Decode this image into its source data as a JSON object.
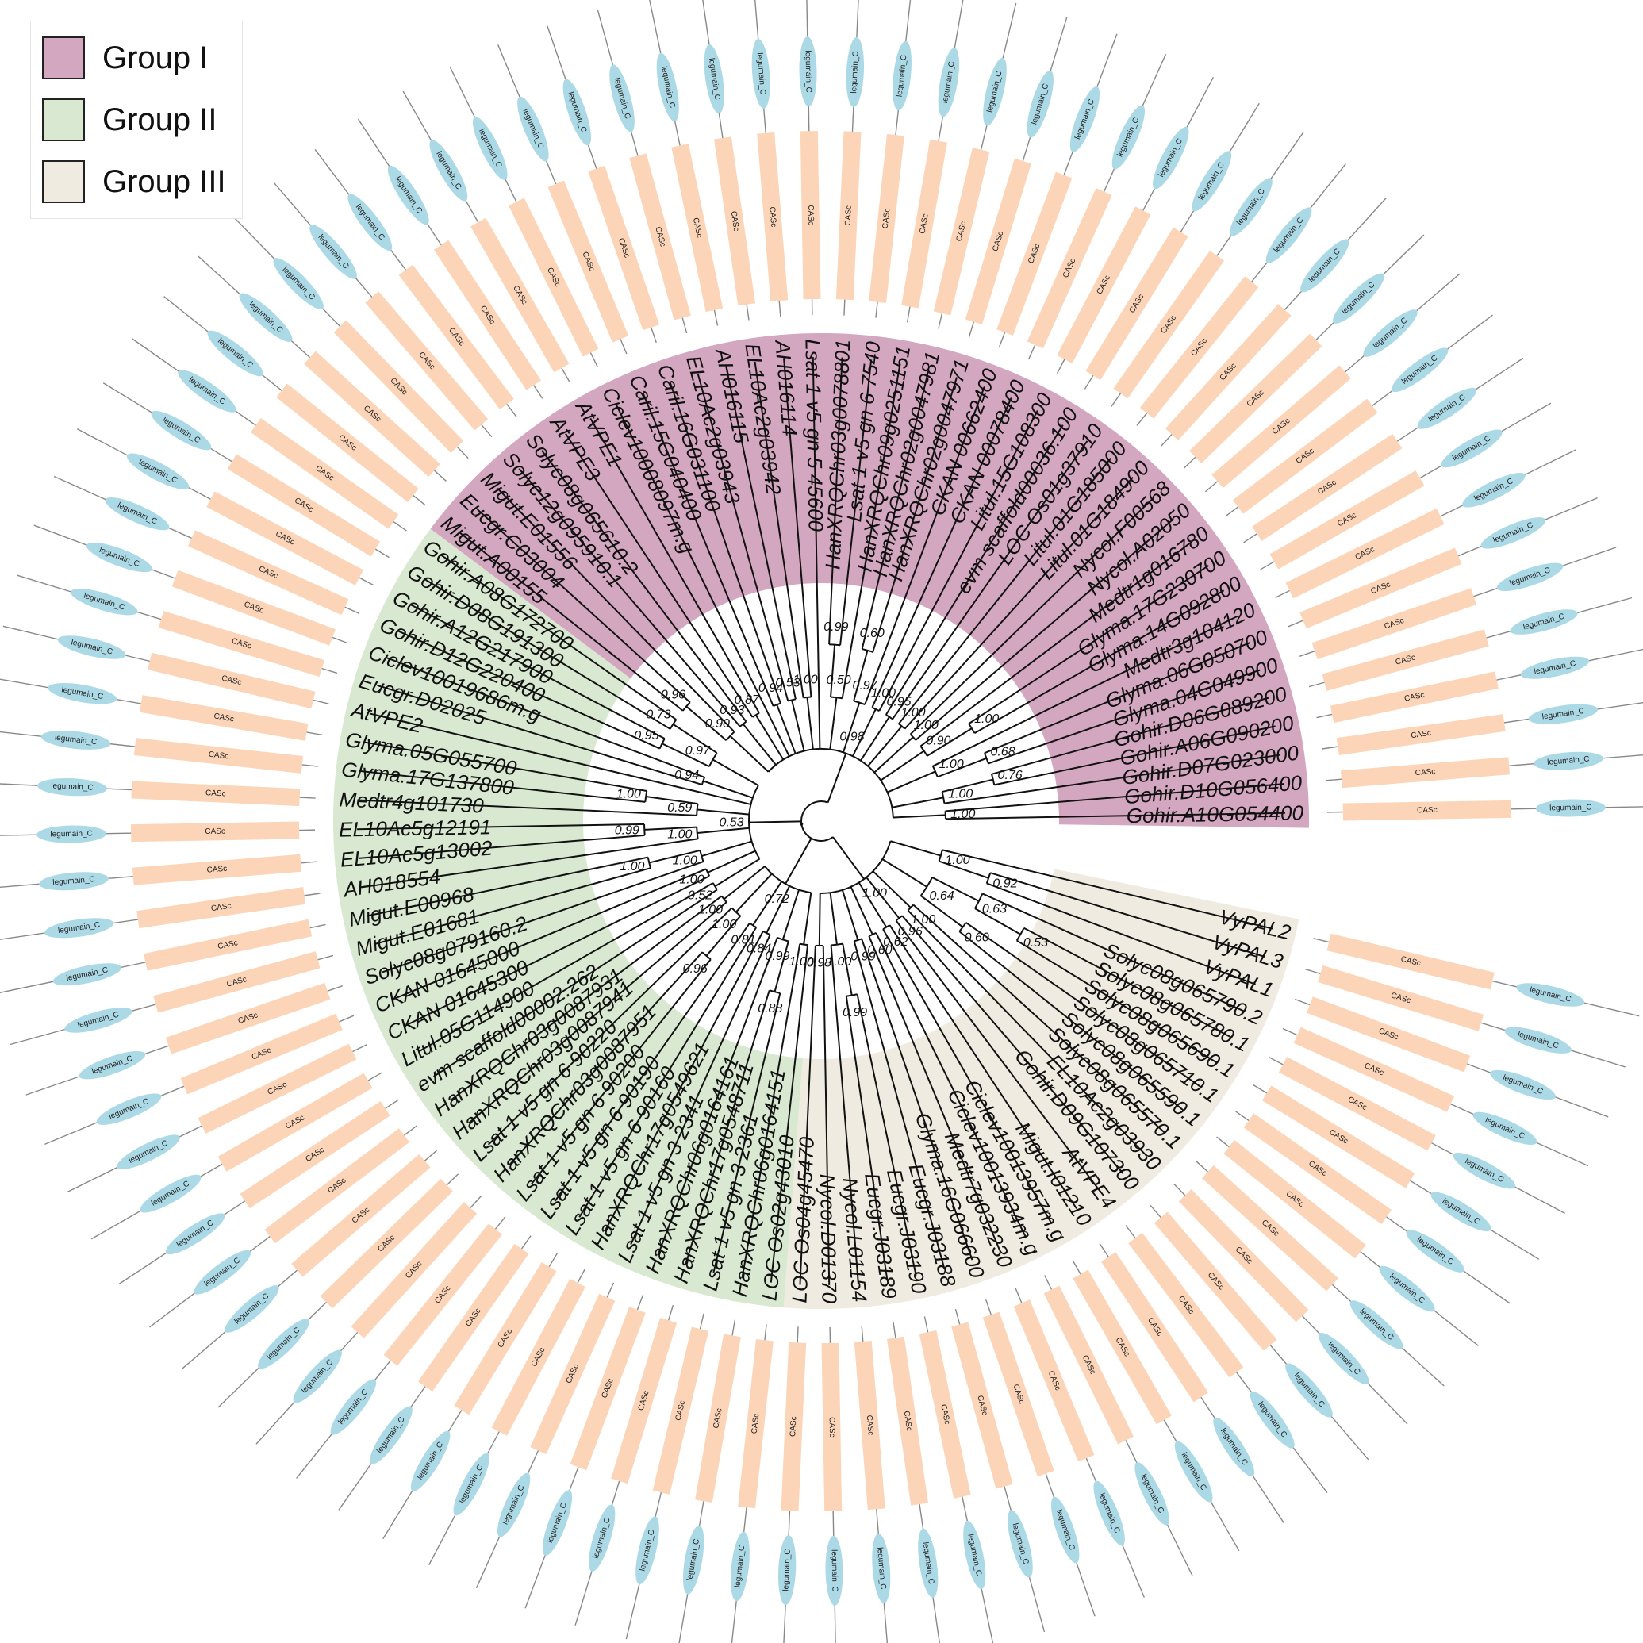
{
  "legend": {
    "items": [
      {
        "label": "Group I",
        "color": "#d4a7c0"
      },
      {
        "label": "Group II",
        "color": "#d9e8d1"
      },
      {
        "label": "Group III",
        "color": "#efebe0"
      }
    ]
  },
  "domains": {
    "inner_label": "CASc",
    "inner_color": "#fcd5b8",
    "outer_label": "legumain_C",
    "outer_color": "#acd9e6",
    "line_color": "#888888"
  },
  "leaves": [
    {
      "name": "Gohir.A10G054400",
      "group": 1
    },
    {
      "name": "Gohir.D10G056400",
      "group": 1
    },
    {
      "name": "Gohir.D07G023000",
      "group": 1
    },
    {
      "name": "Gohir.A06G090200",
      "group": 1
    },
    {
      "name": "Gohir.D06G089200",
      "group": 1
    },
    {
      "name": "Glyma.04G049900",
      "group": 1
    },
    {
      "name": "Glyma.06G050700",
      "group": 1
    },
    {
      "name": "Medtr3g104120",
      "group": 1
    },
    {
      "name": "Glyma.14G092800",
      "group": 1
    },
    {
      "name": "Glyma.17G230700",
      "group": 1
    },
    {
      "name": "Medtr1g016780",
      "group": 1
    },
    {
      "name": "Nycol.A02050",
      "group": 1
    },
    {
      "name": "Nycol.F00568",
      "group": 1
    },
    {
      "name": "Litul.01G184900",
      "group": 1
    },
    {
      "name": "Litul.01G185000",
      "group": 1
    },
    {
      "name": "LOC Os01g37910",
      "group": 1
    },
    {
      "name": "evm scaffold00036.100",
      "group": 1
    },
    {
      "name": "Litul.15G108300",
      "group": 1
    },
    {
      "name": "CKAN 00078400",
      "group": 1
    },
    {
      "name": "CKAN 00662400",
      "group": 1
    },
    {
      "name": "HanXRQChr02g0047971",
      "group": 1
    },
    {
      "name": "HanXRQChr02g0047981",
      "group": 1
    },
    {
      "name": "HanXRQChr09g0251151",
      "group": 1
    },
    {
      "name": "Lsat 1 v5 gn 6 7540",
      "group": 1
    },
    {
      "name": "HanXRQChr03g0078801",
      "group": 1
    },
    {
      "name": "Lsat 1 v5 gn 5 45600",
      "group": 1
    },
    {
      "name": "AH016114",
      "group": 1
    },
    {
      "name": "EL10Ac2g03942",
      "group": 1
    },
    {
      "name": "AH016115",
      "group": 1
    },
    {
      "name": "EL10Ac2g03943",
      "group": 1
    },
    {
      "name": "Caril.16G031100",
      "group": 1
    },
    {
      "name": "Caril.15G040400",
      "group": 1
    },
    {
      "name": "Ciclev10008097m.g",
      "group": 1
    },
    {
      "name": "AtVPE1",
      "group": 1
    },
    {
      "name": "AtVPE3",
      "group": 1
    },
    {
      "name": "Solyc08g065610.2",
      "group": 1
    },
    {
      "name": "Solyc12g095910.1",
      "group": 1
    },
    {
      "name": "Migut.E01556",
      "group": 1
    },
    {
      "name": "Eucgr.C03004",
      "group": 1
    },
    {
      "name": "Migut.A00155",
      "group": 1
    },
    {
      "name": "Gohir.A08G172700",
      "group": 2
    },
    {
      "name": "Gohir.D08G191300",
      "group": 2
    },
    {
      "name": "Gohir.A12G217900",
      "group": 2
    },
    {
      "name": "Gohir.D12G220400",
      "group": 2
    },
    {
      "name": "Ciclev10019686m.g",
      "group": 2
    },
    {
      "name": "Eucgr.D02025",
      "group": 2
    },
    {
      "name": "AtVPE2",
      "group": 2
    },
    {
      "name": "Glyma.05G055700",
      "group": 2
    },
    {
      "name": "Glyma.17G137800",
      "group": 2
    },
    {
      "name": "Medtr4g101730",
      "group": 2
    },
    {
      "name": "EL10Ac5g12191",
      "group": 2
    },
    {
      "name": "EL10Ac5g13002",
      "group": 2
    },
    {
      "name": "AH018554",
      "group": 2
    },
    {
      "name": "Migut.E00968",
      "group": 2
    },
    {
      "name": "Migut.E01681",
      "group": 2
    },
    {
      "name": "Solyc08g079160.2",
      "group": 2
    },
    {
      "name": "CKAN 01645000",
      "group": 2
    },
    {
      "name": "CKAN 01645300",
      "group": 2
    },
    {
      "name": "Litul.05G114900",
      "group": 2
    },
    {
      "name": "evm scaffold00002.262",
      "group": 2
    },
    {
      "name": "HanXRQChr03g0087931",
      "group": 2
    },
    {
      "name": "HanXRQChr03g0087941",
      "group": 2
    },
    {
      "name": "Lsat 1 v5 gn 6 90220",
      "group": 2
    },
    {
      "name": "HanXRQChr03g0087951",
      "group": 2
    },
    {
      "name": "Lsat 1 v5 gn 6 90200",
      "group": 2
    },
    {
      "name": "Lsat 1 v5 gn 6 90190",
      "group": 2
    },
    {
      "name": "Lsat 1 v5 gn 6 90160",
      "group": 2
    },
    {
      "name": "HanXRQChr17g0549621",
      "group": 2
    },
    {
      "name": "Lsat 1 v5 gn 3 2341",
      "group": 2
    },
    {
      "name": "HanXRQChr06g0164161",
      "group": 2
    },
    {
      "name": "HanXRQChr17g0548711",
      "group": 2
    },
    {
      "name": "Lsat 1 v5 gn 3 2361",
      "group": 2
    },
    {
      "name": "HanXRQChr06g0164151",
      "group": 2
    },
    {
      "name": "LOC Os02g43010",
      "group": 2
    },
    {
      "name": "LOC Os04g45470",
      "group": 3
    },
    {
      "name": "Nycol.D01370",
      "group": 3
    },
    {
      "name": "Nycol.L01154",
      "group": 3
    },
    {
      "name": "Eucgr.J03189",
      "group": 3
    },
    {
      "name": "Eucgr.J03190",
      "group": 3
    },
    {
      "name": "Eucgr.J03188",
      "group": 3
    },
    {
      "name": "Glyma.16G066600",
      "group": 3
    },
    {
      "name": "Medtr7g032230",
      "group": 3
    },
    {
      "name": "Ciclev10013934m.g",
      "group": 3
    },
    {
      "name": "Ciclev10013957m.g",
      "group": 3
    },
    {
      "name": "Migut.I01210",
      "group": 3
    },
    {
      "name": "AtVPE4",
      "group": 3
    },
    {
      "name": "Gohir.D09G107300",
      "group": 3
    },
    {
      "name": "EL10Ac2g03930",
      "group": 3
    },
    {
      "name": "Solyc08g065570.1",
      "group": 3
    },
    {
      "name": "Solyc08g065590.1",
      "group": 3
    },
    {
      "name": "Solyc08g065710.1",
      "group": 3
    },
    {
      "name": "Solyc08g065690.1",
      "group": 3
    },
    {
      "name": "Solyc08g065780.1",
      "group": 3
    },
    {
      "name": "Solyc08g065790.2",
      "group": 3
    },
    {
      "name": "VyPAL1",
      "group": 3
    },
    {
      "name": "VyPAL3",
      "group": 3
    },
    {
      "name": "VyPAL2",
      "group": 3
    }
  ],
  "support_values": [
    "1.00",
    "0.76",
    "1.00",
    "0.68",
    "1.00",
    "1.00",
    "0.90",
    "1.00",
    "1.00",
    "0.95",
    "1.00",
    "0.60",
    "0.97",
    "0.99",
    "0.50",
    "1.00",
    "0.53",
    "0.94",
    "0.87",
    "0.93",
    "0.96",
    "0.90",
    "0.98",
    "0.73",
    "0.95",
    "0.97",
    "0.94",
    "1.00",
    "0.59",
    "0.99",
    "1.00",
    "1.00",
    "1.00",
    "1.00",
    "0.52",
    "0.53",
    "1.00",
    "0.96",
    "1.00",
    "0.81",
    "0.84",
    "0.88",
    "0.99",
    "1.00",
    "0.72",
    "0.98",
    "0.99",
    "1.00",
    "0.99",
    "0.60",
    "0.62",
    "0.96",
    "1.00",
    "0.60",
    "0.53",
    "0.63",
    "0.64",
    "0.92",
    "1.00",
    "1.00",
    "1.00",
    "0.82",
    "1.00",
    "1.00",
    "1.00",
    "0.74",
    "0.53",
    "1.00",
    "1.00"
  ]
}
